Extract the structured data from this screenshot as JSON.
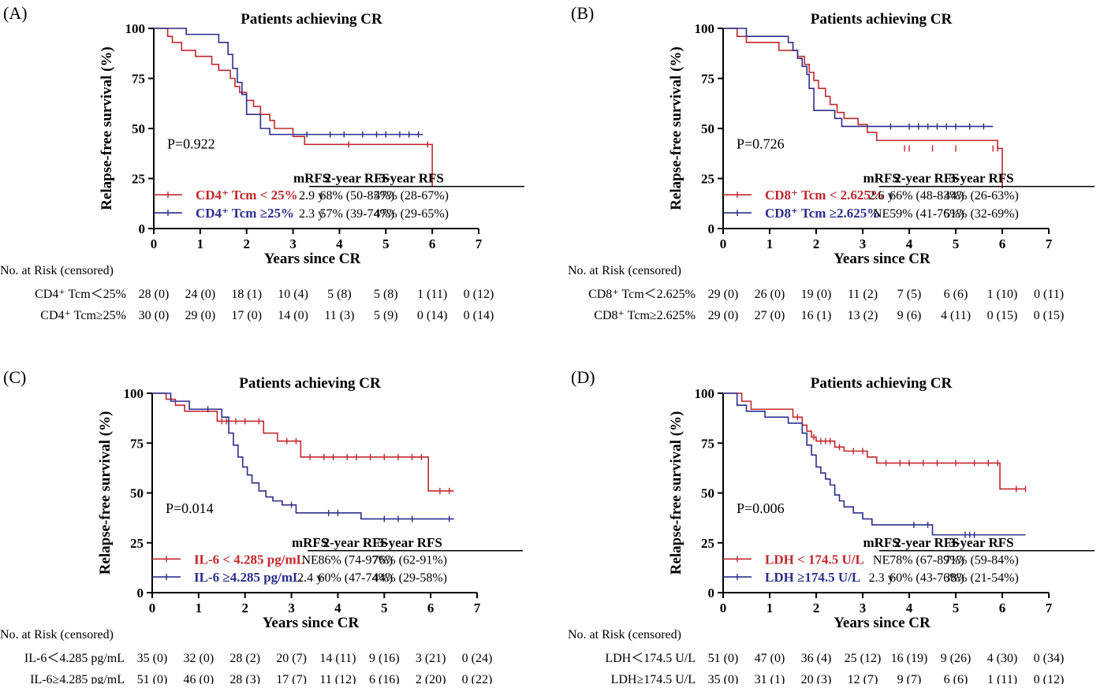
{
  "colors": {
    "group1": "#c0282d",
    "group2": "#2b2e8c",
    "axis": "#000000"
  },
  "chart_data": [
    {
      "panel": "(A)",
      "type": "line",
      "subtype": "kaplan-meier",
      "title": "Patients achieving CR",
      "xlabel": "Years since CR",
      "ylabel": "Relapse-free survival (%)",
      "xlim": [
        0,
        7
      ],
      "ylim": [
        0,
        100
      ],
      "xticks": [
        0,
        1,
        2,
        3,
        4,
        5,
        6,
        7
      ],
      "yticks": [
        0,
        25,
        50,
        75,
        100
      ],
      "pvalue": "P=0.922",
      "table_headers": [
        "mRFS",
        "2-year RFS",
        "3-year RFS"
      ],
      "series": [
        {
          "name": "CD4⁺ Tcm < 25%",
          "color": "#c0282d",
          "mrfs": "2.9 y",
          "rfs2": "68% (50-85%)",
          "rfs3": "47% (28-67%)",
          "x": [
            0,
            0.3,
            0.4,
            0.6,
            0.9,
            1.25,
            1.4,
            1.65,
            1.75,
            1.85,
            2.0,
            2.15,
            2.3,
            2.5,
            2.6,
            3.0,
            3.25,
            4.0,
            5.9,
            6.0
          ],
          "y": [
            100,
            96,
            93,
            89,
            86,
            82,
            79,
            75,
            71,
            68,
            64,
            61,
            57,
            54,
            50,
            46,
            42,
            42,
            42,
            21
          ],
          "censor_x": [
            4.2,
            5.9
          ],
          "censor_y": [
            42,
            42
          ]
        },
        {
          "name": "CD4⁺ Tcm ≥25%",
          "color": "#2b2e8c",
          "mrfs": "2.3 y",
          "rfs2": "57% (39-74%)",
          "rfs3": "47% (29-65%)",
          "x": [
            0,
            0.7,
            1.4,
            1.6,
            1.7,
            1.8,
            1.9,
            2.0,
            2.3,
            2.5,
            3.0,
            5.8
          ],
          "y": [
            100,
            97,
            93,
            87,
            80,
            73,
            67,
            57,
            50,
            47,
            47,
            47
          ],
          "censor_x": [
            3.3,
            3.8,
            4.1,
            4.5,
            4.8,
            5.0,
            5.3,
            5.5,
            5.7
          ],
          "censor_y": [
            47,
            47,
            47,
            47,
            47,
            47,
            47,
            47,
            47
          ]
        }
      ],
      "risk_title": "No. at Risk (censored)",
      "risk_labels": [
        "CD4⁺ Tcm＜25%",
        "CD4⁺ Tcm≥25%"
      ],
      "risk_rows": [
        [
          "28 (0)",
          "24 (0)",
          "18 (1)",
          "10 (4)",
          "5 (8)",
          "5 (8)",
          "1 (11)",
          "0 (12)"
        ],
        [
          "30 (0)",
          "29 (0)",
          "17 (0)",
          "14 (0)",
          "11 (3)",
          "5 (9)",
          "0 (14)",
          "0 (14)"
        ]
      ]
    },
    {
      "panel": "(B)",
      "type": "line",
      "subtype": "kaplan-meier",
      "title": "Patients achieving CR",
      "xlabel": "Years since CR",
      "ylabel": "Relapse-free survival (%)",
      "xlim": [
        0,
        7
      ],
      "ylim": [
        0,
        100
      ],
      "xticks": [
        0,
        1,
        2,
        3,
        4,
        5,
        6,
        7
      ],
      "yticks": [
        0,
        25,
        50,
        75,
        100
      ],
      "pvalue": "P=0.726",
      "table_headers": [
        "mRFS",
        "2-year RFS",
        "3-year RFS"
      ],
      "series": [
        {
          "name": "CD8⁺ Tcm < 2.625%",
          "color": "#c0282d",
          "mrfs": "2.6 y",
          "rfs2": "66% (48-83%)",
          "rfs3": "44% (26-63%)",
          "x": [
            0,
            0.3,
            0.5,
            1.2,
            1.6,
            1.75,
            1.85,
            1.95,
            2.05,
            2.2,
            2.3,
            2.45,
            2.6,
            2.9,
            3.1,
            3.3,
            5.9,
            6.0
          ],
          "y": [
            100,
            96,
            93,
            89,
            86,
            82,
            78,
            74,
            70,
            66,
            62,
            58,
            55,
            52,
            48,
            44,
            40,
            20
          ],
          "censor_x": [
            3.9,
            4.0,
            4.5,
            5.0,
            5.8,
            5.9
          ],
          "censor_y": [
            40,
            40,
            40,
            40,
            40,
            40
          ]
        },
        {
          "name": "CD8⁺ Tcm ≥2.625%",
          "color": "#2b2e8c",
          "mrfs": "NE",
          "rfs2": "59% (41-76%)",
          "rfs3": "51% (32-69%)",
          "x": [
            0,
            0.5,
            1.4,
            1.5,
            1.6,
            1.7,
            1.8,
            1.85,
            1.95,
            2.4,
            2.55,
            5.8
          ],
          "y": [
            100,
            96,
            93,
            89,
            85,
            81,
            77,
            70,
            59,
            55,
            51,
            51
          ],
          "censor_x": [
            3.6,
            4.0,
            4.2,
            4.4,
            4.6,
            4.8,
            5.0,
            5.3,
            5.6
          ],
          "censor_y": [
            51,
            51,
            51,
            51,
            51,
            51,
            51,
            51,
            51
          ]
        }
      ],
      "risk_title": "No. at Risk (censored)",
      "risk_labels": [
        "CD8⁺ Tcm＜2.625%",
        "CD8⁺ Tcm≥2.625%"
      ],
      "risk_rows": [
        [
          "29 (0)",
          "26 (0)",
          "19 (0)",
          "11 (2)",
          "7 (5)",
          "6 (6)",
          "1 (10)",
          "0 (11)"
        ],
        [
          "29 (0)",
          "27 (0)",
          "16 (1)",
          "13 (2)",
          "9 (6)",
          "4 (11)",
          "0 (15)",
          "0 (15)"
        ]
      ]
    },
    {
      "panel": "(C)",
      "type": "line",
      "subtype": "kaplan-meier",
      "title": "Patients achieving CR",
      "xlabel": "Years since CR",
      "ylabel": "Relapse-free survival (%)",
      "xlim": [
        0,
        7
      ],
      "ylim": [
        0,
        100
      ],
      "xticks": [
        0,
        1,
        2,
        3,
        4,
        5,
        6,
        7
      ],
      "yticks": [
        0,
        25,
        50,
        75,
        100
      ],
      "pvalue": "P=0.014",
      "table_headers": [
        "mRFS",
        "2-year RFS",
        "3-year RFS"
      ],
      "series": [
        {
          "name": "IL-6 < 4.285 pg/mL",
          "color": "#c0282d",
          "mrfs": "NE",
          "rfs2": "86% (74-97%)",
          "rfs3": "76% (62-91%)",
          "x": [
            0,
            0.3,
            0.5,
            0.7,
            1.4,
            2.4,
            2.7,
            3.2,
            5.95,
            6.5
          ],
          "y": [
            100,
            97,
            94,
            91,
            86,
            80,
            76,
            68,
            51,
            51
          ],
          "censor_x": [
            1.5,
            1.6,
            1.8,
            2.0,
            2.3,
            2.9,
            3.1,
            3.4,
            3.7,
            3.9,
            4.2,
            4.4,
            4.7,
            5.0,
            5.3,
            5.6,
            5.8,
            6.2,
            6.4
          ],
          "censor_y": [
            86,
            86,
            86,
            86,
            86,
            76,
            76,
            68,
            68,
            68,
            68,
            68,
            68,
            68,
            68,
            68,
            68,
            51,
            51
          ]
        },
        {
          "name": "IL-6 ≥4.285 pg/mL",
          "color": "#2b2e8c",
          "mrfs": "2.4 y",
          "rfs2": "60% (47-74%)",
          "rfs3": "44% (29-58%)",
          "x": [
            0,
            0.4,
            0.8,
            1.5,
            1.65,
            1.75,
            1.85,
            1.95,
            2.05,
            2.15,
            2.3,
            2.45,
            2.6,
            2.8,
            3.1,
            4.5,
            6.5
          ],
          "y": [
            100,
            96,
            92,
            88,
            80,
            74,
            68,
            63,
            59,
            55,
            51,
            48,
            46,
            44,
            40,
            37,
            37
          ],
          "censor_x": [
            1.2,
            3.0,
            3.8,
            4.0,
            5.0,
            5.3,
            5.6,
            6.4
          ],
          "censor_y": [
            92,
            44,
            40,
            40,
            37,
            37,
            37,
            37
          ]
        }
      ],
      "risk_title": "No. at Risk (censored)",
      "risk_labels": [
        "IL-6＜4.285 pg/mL",
        "IL-6≥4.285 pg/mL"
      ],
      "risk_rows": [
        [
          "35 (0)",
          "32 (0)",
          "28 (2)",
          "20 (7)",
          "14 (11)",
          "9 (16)",
          "3 (21)",
          "0 (24)"
        ],
        [
          "51 (0)",
          "46 (0)",
          "28 (3)",
          "17 (7)",
          "11 (12)",
          "6 (16)",
          "2 (20)",
          "0 (22)"
        ]
      ]
    },
    {
      "panel": "(D)",
      "type": "line",
      "subtype": "kaplan-meier",
      "title": "Patients achieving CR",
      "xlabel": "Years since CR",
      "ylabel": "Relapse-free survival (%)",
      "xlim": [
        0,
        7
      ],
      "ylim": [
        0,
        100
      ],
      "xticks": [
        0,
        1,
        2,
        3,
        4,
        5,
        6,
        7
      ],
      "yticks": [
        0,
        25,
        50,
        75,
        100
      ],
      "pvalue": "P=0.006",
      "table_headers": [
        "mRFS",
        "2-year RFS",
        "3-year RFS"
      ],
      "series": [
        {
          "name": "LDH < 174.5 U/L",
          "color": "#c0282d",
          "mrfs": "NE",
          "rfs2": "78% (67-89%)",
          "rfs3": "71% (59-84%)",
          "x": [
            0,
            0.4,
            0.6,
            1.5,
            1.7,
            1.8,
            1.9,
            2.0,
            2.4,
            2.6,
            3.1,
            3.3,
            5.95,
            6.5
          ],
          "y": [
            100,
            96,
            92,
            88,
            84,
            81,
            78,
            76,
            73,
            71,
            68,
            65,
            52,
            52
          ],
          "censor_x": [
            1.6,
            1.95,
            2.1,
            2.2,
            2.3,
            2.5,
            2.8,
            3.0,
            3.5,
            3.8,
            4.0,
            4.3,
            4.6,
            5.0,
            5.4,
            5.7,
            5.9,
            6.3,
            6.5
          ],
          "censor_y": [
            88,
            78,
            76,
            76,
            76,
            73,
            71,
            71,
            65,
            65,
            65,
            65,
            65,
            65,
            65,
            65,
            65,
            52,
            52
          ]
        },
        {
          "name": "LDH ≥174.5 U/L",
          "color": "#2b2e8c",
          "mrfs": "2.3 y",
          "rfs2": "60% (43-76%)",
          "rfs3": "38% (21-54%)",
          "x": [
            0,
            0.3,
            0.5,
            0.9,
            1.4,
            1.7,
            1.8,
            1.9,
            2.0,
            2.1,
            2.2,
            2.3,
            2.4,
            2.5,
            2.6,
            2.8,
            3.0,
            3.2,
            3.5,
            4.5,
            6.5
          ],
          "y": [
            100,
            94,
            91,
            88,
            85,
            80,
            74,
            69,
            63,
            60,
            57,
            54,
            49,
            46,
            43,
            40,
            37,
            34,
            34,
            29,
            29
          ],
          "censor_x": [
            4.1,
            4.4,
            5.2,
            5.3,
            5.4
          ],
          "censor_y": [
            34,
            34,
            29,
            29,
            29
          ]
        }
      ],
      "risk_title": "No. at Risk (censored)",
      "risk_labels": [
        "LDH＜174.5 U/L",
        "LDH≥174.5 U/L"
      ],
      "risk_rows": [
        [
          "51 (0)",
          "47 (0)",
          "36 (4)",
          "25 (12)",
          "16 (19)",
          "9 (26)",
          "4 (30)",
          "0 (34)"
        ],
        [
          "35 (0)",
          "31 (1)",
          "20 (3)",
          "12 (7)",
          "9 (7)",
          "6 (6)",
          "1 (11)",
          "0 (12)"
        ]
      ]
    }
  ]
}
